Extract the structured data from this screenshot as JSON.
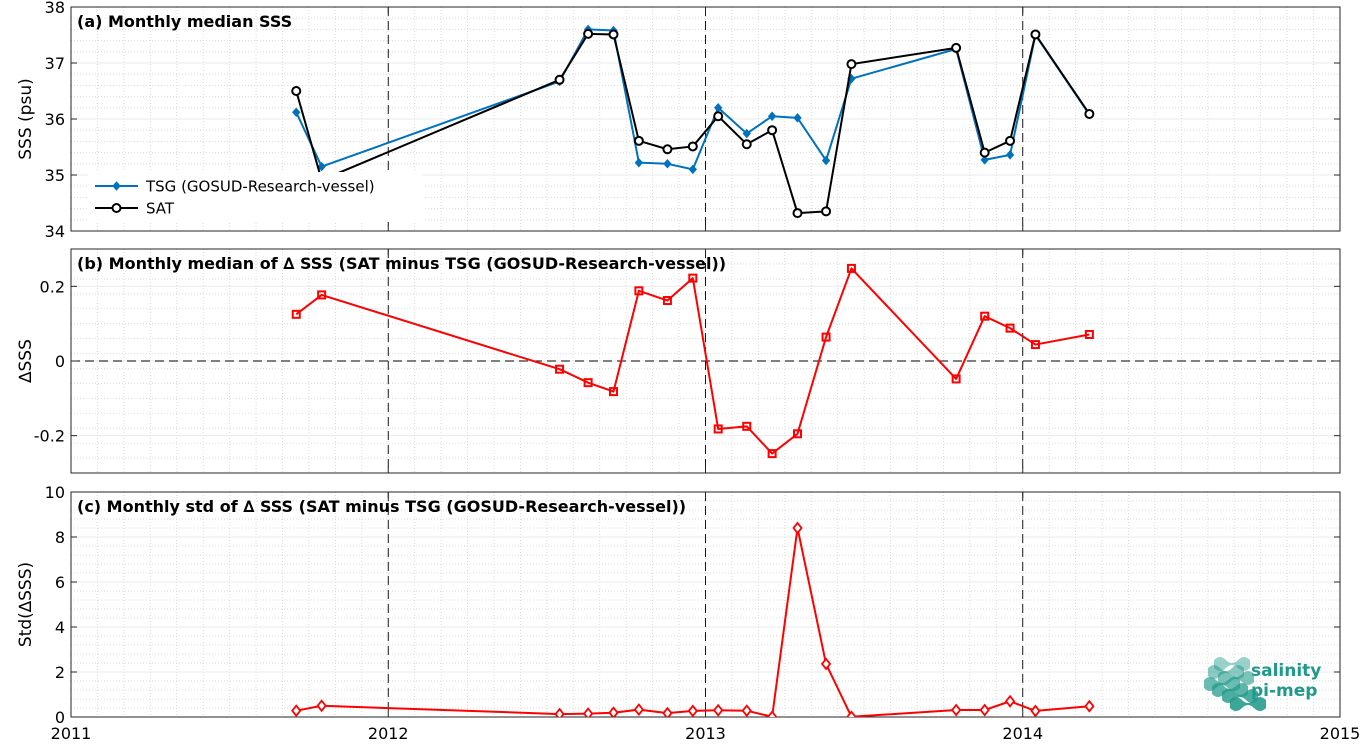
{
  "chart_data": [
    {
      "type": "line",
      "title": "(a) Monthly median SSS",
      "xlabel": "",
      "ylabel": "SSS (psu)",
      "xlim": [
        2011,
        2015
      ],
      "ylim": [
        34,
        38
      ],
      "yticks": [
        34,
        35,
        36,
        37,
        38
      ],
      "grid": true,
      "legend": "left",
      "series": [
        {
          "name": "TSG (GOSUD-Research-vessel)",
          "color": "#0072BD",
          "marker": "diamond",
          "x": [
            2011.71,
            2011.79,
            2012.54,
            2012.63,
            2012.71,
            2012.79,
            2012.88,
            2012.96,
            2013.04,
            2013.13,
            2013.21,
            2013.29,
            2013.38,
            2013.46,
            2013.79,
            2013.88,
            2013.96,
            2014.04,
            2014.21
          ],
          "y": [
            36.12,
            35.15,
            36.67,
            37.6,
            37.58,
            35.22,
            35.2,
            35.1,
            36.2,
            35.74,
            36.05,
            36.02,
            35.26,
            36.72,
            37.25,
            35.27,
            35.36,
            37.5,
            36.08
          ]
        },
        {
          "name": "SAT",
          "color": "#000000",
          "marker": "circle",
          "x": [
            2011.71,
            2011.79,
            2012.54,
            2012.63,
            2012.71,
            2012.79,
            2012.88,
            2012.96,
            2013.04,
            2013.13,
            2013.21,
            2013.29,
            2013.38,
            2013.46,
            2013.79,
            2013.88,
            2013.96,
            2014.04,
            2014.21
          ],
          "y": [
            36.5,
            34.91,
            36.7,
            37.52,
            37.51,
            35.61,
            35.46,
            35.51,
            36.05,
            35.55,
            35.8,
            34.32,
            34.35,
            36.98,
            37.27,
            35.4,
            35.61,
            37.51,
            36.09
          ]
        }
      ]
    },
    {
      "type": "line",
      "title": "(b) Monthly median of ∆ SSS (SAT minus TSG (GOSUD-Research-vessel))",
      "xlabel": "",
      "ylabel": "∆SSS",
      "xlim": [
        2011,
        2015
      ],
      "ylim": [
        -0.3,
        0.3
      ],
      "yticks": [
        -0.2,
        0,
        0.2
      ],
      "yticklabels": [
        "-0.2",
        "0",
        "0.2"
      ],
      "grid": true,
      "zero_line": true,
      "series": [
        {
          "name": "",
          "color": "#FF0000",
          "marker": "square",
          "x": [
            2011.71,
            2011.79,
            2012.54,
            2012.63,
            2012.71,
            2012.79,
            2012.88,
            2012.96,
            2013.04,
            2013.13,
            2013.21,
            2013.29,
            2013.38,
            2013.46,
            2013.79,
            2013.88,
            2013.96,
            2014.04,
            2014.21
          ],
          "y": [
            0.125,
            0.177,
            -0.022,
            -0.058,
            -0.082,
            0.188,
            0.162,
            0.222,
            -0.182,
            -0.175,
            -0.248,
            -0.195,
            0.064,
            0.248,
            -0.048,
            0.12,
            0.088,
            0.044,
            0.071
          ]
        }
      ]
    },
    {
      "type": "line",
      "title": "(c) Monthly std of ∆ SSS (SAT minus TSG (GOSUD-Research-vessel))",
      "xlabel": "",
      "ylabel": "Std(∆SSS)",
      "xlim": [
        2011,
        2015
      ],
      "ylim": [
        0,
        10
      ],
      "yticks": [
        0,
        2,
        4,
        6,
        8,
        10
      ],
      "xticks": [
        2011,
        2012,
        2013,
        2014,
        2015
      ],
      "grid": true,
      "series": [
        {
          "name": "",
          "color": "#FF0000",
          "marker": "diamond-open",
          "x": [
            2011.71,
            2011.79,
            2012.54,
            2012.63,
            2012.71,
            2012.79,
            2012.88,
            2012.96,
            2013.04,
            2013.13,
            2013.21,
            2013.29,
            2013.38,
            2013.46,
            2013.79,
            2013.88,
            2013.96,
            2014.04,
            2014.21
          ],
          "y": [
            0.28,
            0.5,
            0.13,
            0.15,
            0.19,
            0.33,
            0.17,
            0.27,
            0.3,
            0.28,
            0.01,
            8.4,
            2.36,
            0.01,
            0.31,
            0.31,
            0.7,
            0.27,
            0.48
          ]
        }
      ]
    }
  ],
  "logo": {
    "line1": "salinity",
    "line2": "pi-mep",
    "color": "#1f9a8a"
  }
}
